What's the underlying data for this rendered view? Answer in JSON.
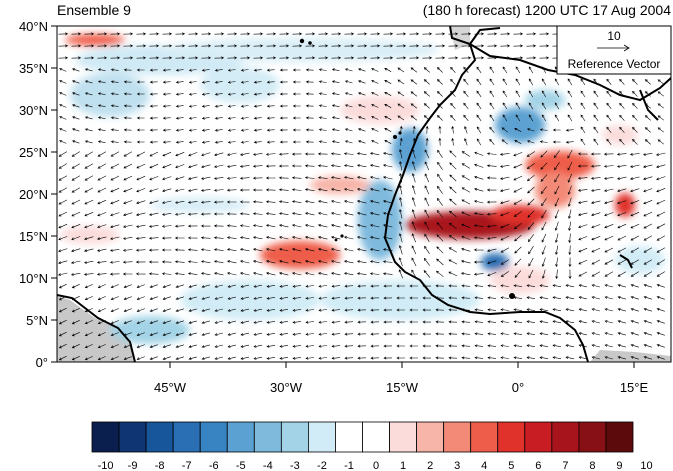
{
  "title_left": "Ensemble 9",
  "title_right": "(180 h forecast) 1200 UTC 17 Aug 2004",
  "lat_labels": [
    "40°N",
    "35°N",
    "30°N",
    "25°N",
    "20°N",
    "15°N",
    "10°N",
    "5°N",
    "0°"
  ],
  "lon_labels": [
    "45°W",
    "30°W",
    "15°W",
    "0°",
    "15°E"
  ],
  "reference_vector": {
    "magnitude": "10",
    "label": "Reference Vector"
  },
  "colorbar": {
    "labels": [
      "-10",
      "-9",
      "-8",
      "-7",
      "-6",
      "-5",
      "-4",
      "-3",
      "-2",
      "-1",
      "0",
      "1",
      "2",
      "3",
      "4",
      "5",
      "6",
      "7",
      "8",
      "9",
      "10"
    ],
    "colors": [
      "#0a1f4d",
      "#0f3572",
      "#17569a",
      "#2a6fb3",
      "#3884c2",
      "#5ba1d1",
      "#7fbadd",
      "#a3d3e6",
      "#d1ecf6",
      "#ffffff",
      "#ffffff",
      "#fbdcdb",
      "#f7b4a8",
      "#f38a77",
      "#ee5d4a",
      "#e0312b",
      "#c71d23",
      "#a8141b",
      "#861015",
      "#5c0a0b"
    ]
  },
  "colors": {
    "coast": "#000000",
    "land_gray": "#c8c8c8",
    "arrow": "#000000"
  }
}
